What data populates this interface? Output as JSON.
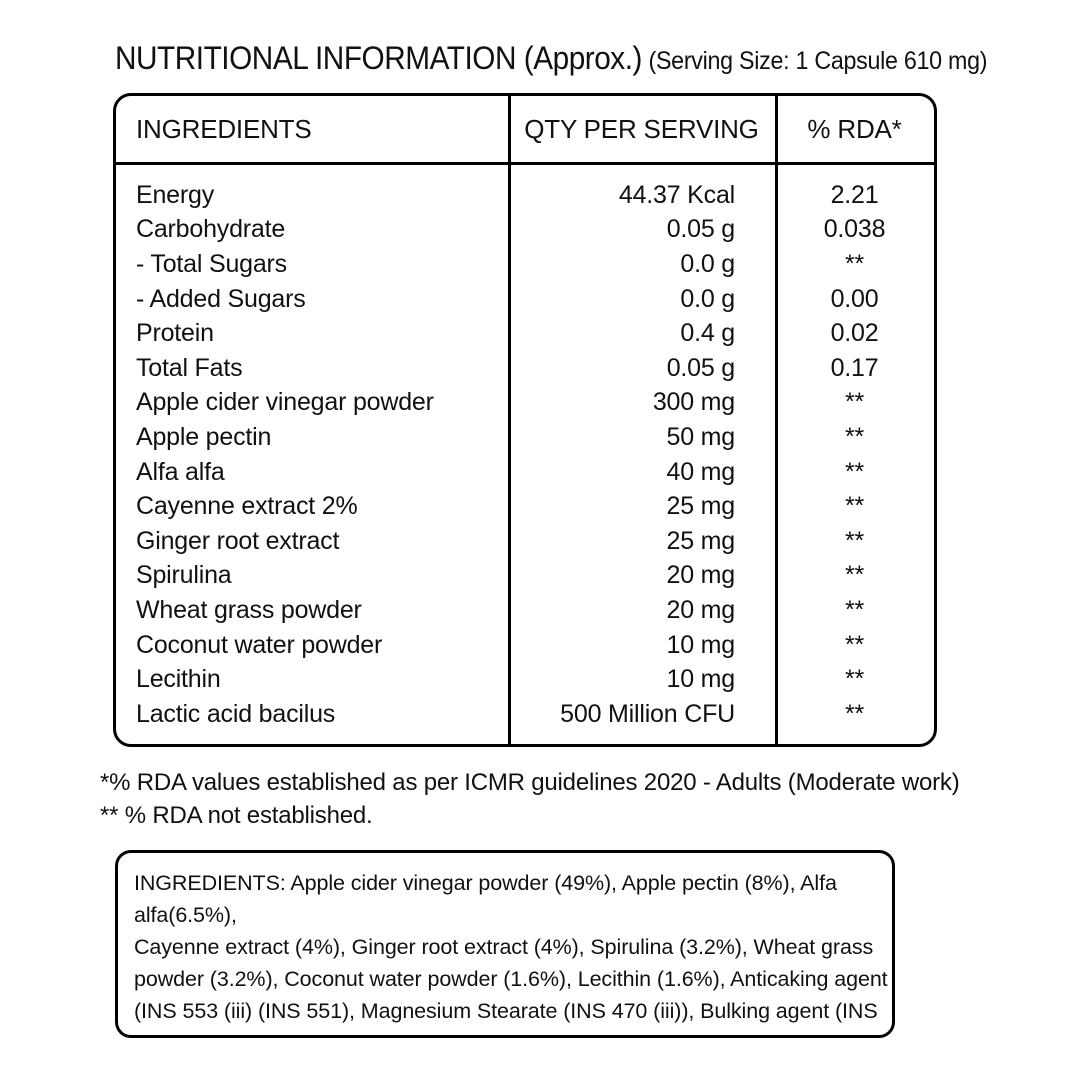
{
  "colors": {
    "text": "#111111",
    "border": "#000000",
    "background": "#ffffff"
  },
  "title": {
    "main": "NUTRITIONAL INFORMATION (Approx.)",
    "serving_size": "(Serving Size: 1 Capsule 610 mg)"
  },
  "table": {
    "headers": [
      "INGREDIENTS",
      "QTY PER SERVING",
      "% RDA*"
    ],
    "rows": [
      {
        "ingredient": "Energy",
        "qty": "44.37 Kcal",
        "rda": "2.21"
      },
      {
        "ingredient": "Carbohydrate",
        "qty": "0.05 g",
        "rda": "0.038"
      },
      {
        "ingredient": "- Total Sugars",
        "qty": "0.0 g",
        "rda": "**"
      },
      {
        "ingredient": "- Added Sugars",
        "qty": "0.0 g",
        "rda": "0.00"
      },
      {
        "ingredient": "Protein",
        "qty": "0.4 g",
        "rda": "0.02"
      },
      {
        "ingredient": "Total Fats",
        "qty": "0.05 g",
        "rda": "0.17"
      },
      {
        "ingredient": "Apple cider vinegar powder",
        "qty": "300 mg",
        "rda": "**"
      },
      {
        "ingredient": "Apple pectin",
        "qty": "50 mg",
        "rda": "**"
      },
      {
        "ingredient": "Alfa alfa",
        "qty": "40 mg",
        "rda": "**"
      },
      {
        "ingredient": "Cayenne extract 2%",
        "qty": "25 mg",
        "rda": "**"
      },
      {
        "ingredient": "Ginger root extract",
        "qty": "25 mg",
        "rda": "**"
      },
      {
        "ingredient": "Spirulina",
        "qty": "20 mg",
        "rda": "**"
      },
      {
        "ingredient": "Wheat grass powder",
        "qty": "20 mg",
        "rda": "**"
      },
      {
        "ingredient": "Coconut water powder",
        "qty": "10 mg",
        "rda": "**"
      },
      {
        "ingredient": "Lecithin",
        "qty": "10 mg",
        "rda": "**"
      },
      {
        "ingredient": "Lactic acid bacilus",
        "qty": "500 Million CFU",
        "rda": "**"
      }
    ]
  },
  "footnotes": [
    "*% RDA values established as per ICMR guidelines 2020 - Adults (Moderate work)",
    "** % RDA not established."
  ],
  "ingredients_box": {
    "lines": [
      "INGREDIENTS: Apple cider vinegar powder (49%), Apple pectin (8%), Alfa",
      "alfa(6.5%),",
      "Cayenne extract (4%), Ginger root extract (4%), Spirulina (3.2%), Wheat grass",
      "powder (3.2%), Coconut water powder (1.6%), Lecithin (1.6%), Anticaking agent",
      "(INS 553 (iii) (INS 551), Magnesium Stearate (INS 470 (iii)), Bulking agent (INS"
    ]
  }
}
